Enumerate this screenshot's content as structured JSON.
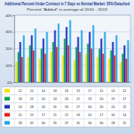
{
  "chart_data": {
    "type": "bar",
    "title": "Additional Percent Under Contract in 7 Days vs Normal Market: SFH-Detached",
    "subtitle": "Percent \"Added\" is average of 2010 - 2013",
    "categories": [
      null,
      null,
      null,
      null,
      null,
      null,
      null,
      null,
      null,
      null
    ],
    "series": [
      {
        "color": "#f2e200",
        "values": [
          12,
          15,
          14,
          18,
          16,
          13,
          17,
          15,
          14,
          12
        ]
      },
      {
        "color": "#00a14b",
        "values": [
          18,
          22,
          20,
          24,
          26,
          21,
          23,
          20,
          19,
          17
        ]
      },
      {
        "color": "#1c2fb8",
        "values": [
          24,
          28,
          26,
          31,
          33,
          27,
          30,
          26,
          24,
          22
        ]
      },
      {
        "color": "#e0201b",
        "values": [
          15,
          19,
          17,
          21,
          22,
          18,
          20,
          17,
          16,
          14
        ]
      },
      {
        "color": "#25a7e8",
        "values": [
          28,
          32,
          30,
          35,
          37,
          31,
          34,
          30,
          28,
          25
        ]
      }
    ],
    "ylim": [
      0,
      40
    ],
    "yticks": [
      {
        "value": 0,
        "label": "0%"
      },
      {
        "value": 10,
        "label": "10%"
      },
      {
        "value": 20,
        "label": "20%"
      },
      {
        "value": 30,
        "label": "30%"
      },
      {
        "value": 40,
        "label": "40%"
      }
    ],
    "grid": true,
    "tick_labels": "y"
  }
}
